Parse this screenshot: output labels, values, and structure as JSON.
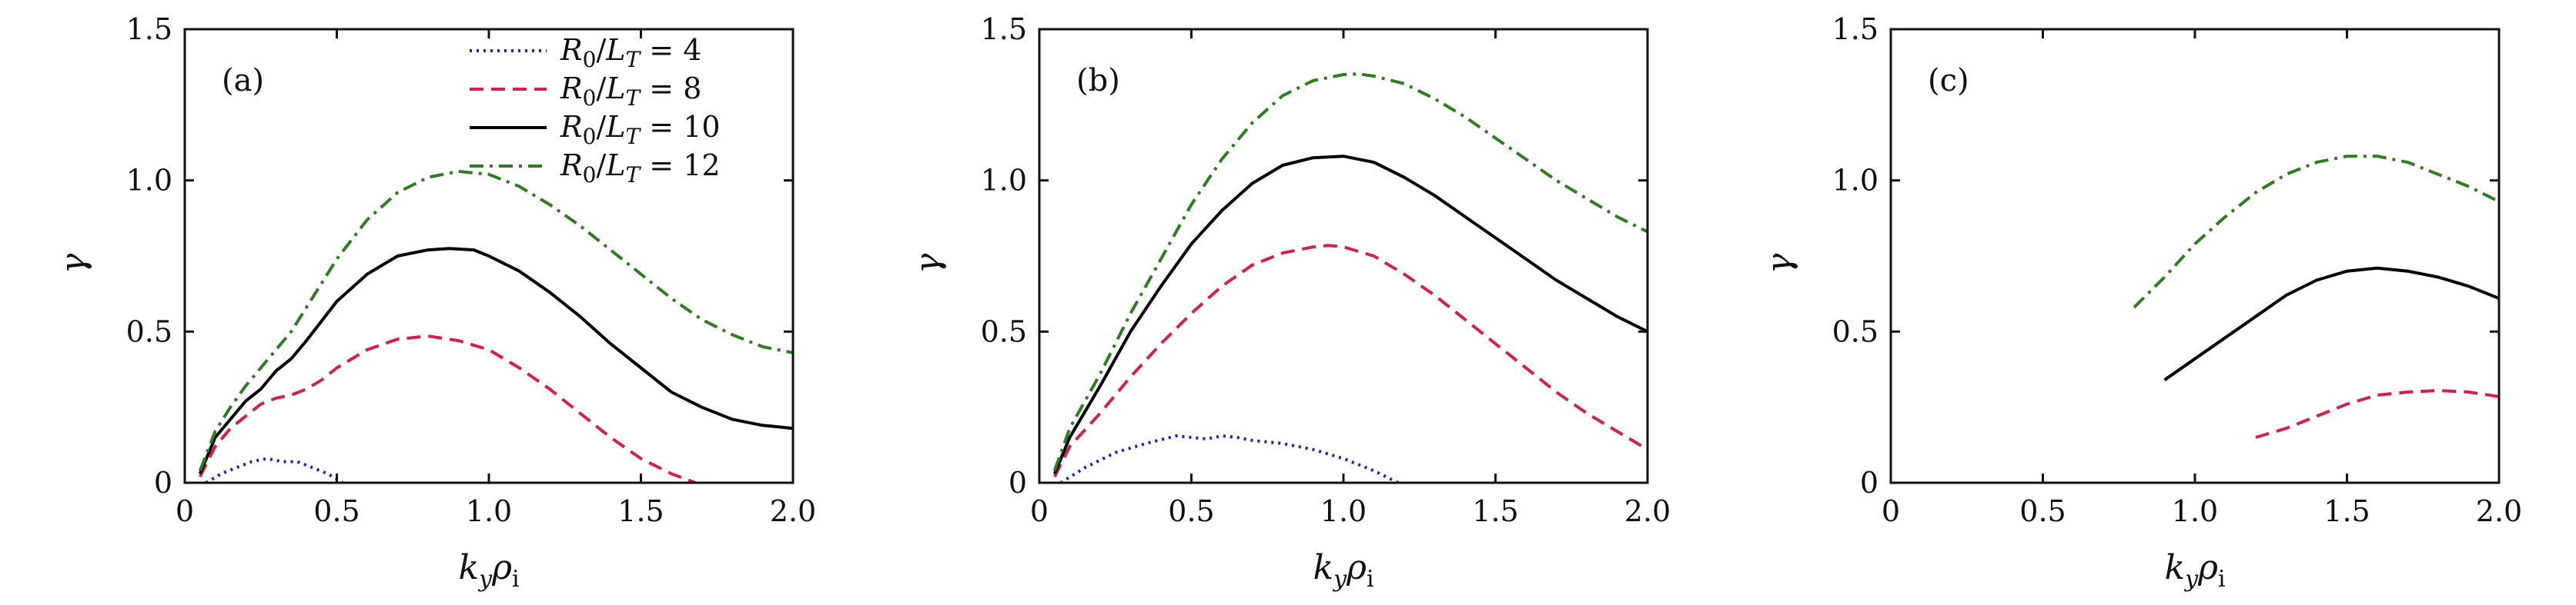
{
  "chart_data": [
    {
      "type": "line",
      "panel_label": "(a)",
      "xlabel": "k_y ρ_i",
      "ylabel": "γ",
      "xlim": [
        0,
        2.0
      ],
      "ylim": [
        0,
        1.5
      ],
      "xticks": [
        "0",
        "0.5",
        "1.0",
        "1.5",
        "2.0"
      ],
      "yticks": [
        "0",
        "0.5",
        "1.0",
        "1.5"
      ],
      "legend_position": "top-right",
      "series": [
        {
          "name": "R0/LT = 4",
          "color": "#1f1fbf",
          "style": "dotted",
          "x": [
            0.07,
            0.12,
            0.17,
            0.22,
            0.27,
            0.32,
            0.37,
            0.42,
            0.47,
            0.52
          ],
          "y": [
            0.0,
            0.03,
            0.05,
            0.07,
            0.08,
            0.07,
            0.07,
            0.05,
            0.03,
            0.0
          ]
        },
        {
          "name": "R0/LT = 8",
          "color": "#d4204a",
          "style": "dashed",
          "x": [
            0.05,
            0.1,
            0.15,
            0.2,
            0.25,
            0.3,
            0.35,
            0.4,
            0.45,
            0.5,
            0.6,
            0.7,
            0.8,
            0.9,
            1.0,
            1.1,
            1.2,
            1.3,
            1.4,
            1.5,
            1.6,
            1.68
          ],
          "y": [
            0.02,
            0.12,
            0.18,
            0.22,
            0.26,
            0.28,
            0.29,
            0.31,
            0.34,
            0.38,
            0.44,
            0.475,
            0.485,
            0.47,
            0.44,
            0.38,
            0.31,
            0.23,
            0.15,
            0.08,
            0.03,
            0.0
          ]
        },
        {
          "name": "R0/LT = 10",
          "color": "#000000",
          "style": "solid",
          "x": [
            0.05,
            0.1,
            0.15,
            0.2,
            0.25,
            0.3,
            0.35,
            0.4,
            0.5,
            0.6,
            0.7,
            0.8,
            0.87,
            0.95,
            1.0,
            1.1,
            1.2,
            1.3,
            1.4,
            1.5,
            1.6,
            1.7,
            1.8,
            1.9,
            2.0
          ],
          "y": [
            0.03,
            0.15,
            0.21,
            0.27,
            0.31,
            0.37,
            0.41,
            0.47,
            0.6,
            0.69,
            0.75,
            0.77,
            0.775,
            0.77,
            0.75,
            0.7,
            0.63,
            0.55,
            0.46,
            0.38,
            0.3,
            0.25,
            0.21,
            0.19,
            0.18
          ]
        },
        {
          "name": "R0/LT = 12",
          "color": "#2e7d1f",
          "style": "dashdot",
          "x": [
            0.05,
            0.1,
            0.15,
            0.2,
            0.25,
            0.3,
            0.35,
            0.4,
            0.5,
            0.6,
            0.7,
            0.8,
            0.9,
            1.0,
            1.1,
            1.2,
            1.3,
            1.4,
            1.5,
            1.6,
            1.7,
            1.8,
            1.9,
            2.0
          ],
          "y": [
            0.04,
            0.17,
            0.25,
            0.32,
            0.38,
            0.44,
            0.5,
            0.58,
            0.74,
            0.87,
            0.96,
            1.01,
            1.03,
            1.02,
            0.98,
            0.92,
            0.85,
            0.77,
            0.69,
            0.61,
            0.54,
            0.49,
            0.45,
            0.43
          ]
        }
      ]
    },
    {
      "type": "line",
      "panel_label": "(b)",
      "xlabel": "k_y ρ_i",
      "ylabel": "γ",
      "xlim": [
        0,
        2.0
      ],
      "ylim": [
        0,
        1.5
      ],
      "xticks": [
        "0",
        "0.5",
        "1.0",
        "1.5",
        "2.0"
      ],
      "yticks": [
        "0",
        "0.5",
        "1.0",
        "1.5"
      ],
      "series": [
        {
          "name": "R0/LT = 4",
          "color": "#1f1fbf",
          "style": "dotted",
          "x": [
            0.07,
            0.15,
            0.25,
            0.35,
            0.45,
            0.5,
            0.55,
            0.6,
            0.65,
            0.7,
            0.8,
            0.9,
            1.0,
            1.1,
            1.18
          ],
          "y": [
            0.0,
            0.05,
            0.1,
            0.13,
            0.155,
            0.15,
            0.145,
            0.155,
            0.15,
            0.14,
            0.13,
            0.11,
            0.08,
            0.04,
            0.0
          ]
        },
        {
          "name": "R0/LT = 8",
          "color": "#d4204a",
          "style": "dashed",
          "x": [
            0.05,
            0.1,
            0.2,
            0.3,
            0.4,
            0.5,
            0.6,
            0.7,
            0.8,
            0.9,
            0.95,
            1.0,
            1.1,
            1.2,
            1.3,
            1.4,
            1.5,
            1.6,
            1.7,
            1.8,
            1.9,
            2.0
          ],
          "y": [
            0.02,
            0.12,
            0.23,
            0.35,
            0.46,
            0.56,
            0.65,
            0.72,
            0.76,
            0.78,
            0.785,
            0.78,
            0.75,
            0.69,
            0.62,
            0.54,
            0.46,
            0.38,
            0.3,
            0.23,
            0.17,
            0.11
          ]
        },
        {
          "name": "R0/LT = 10",
          "color": "#000000",
          "style": "solid",
          "x": [
            0.05,
            0.1,
            0.2,
            0.3,
            0.4,
            0.5,
            0.6,
            0.7,
            0.8,
            0.9,
            1.0,
            1.1,
            1.2,
            1.3,
            1.4,
            1.5,
            1.6,
            1.7,
            1.8,
            1.9,
            2.0
          ],
          "y": [
            0.03,
            0.15,
            0.32,
            0.5,
            0.65,
            0.79,
            0.9,
            0.99,
            1.05,
            1.075,
            1.08,
            1.06,
            1.01,
            0.95,
            0.88,
            0.81,
            0.74,
            0.67,
            0.61,
            0.55,
            0.5
          ]
        },
        {
          "name": "R0/LT = 12",
          "color": "#2e7d1f",
          "style": "dashdot",
          "x": [
            0.05,
            0.1,
            0.2,
            0.3,
            0.4,
            0.5,
            0.6,
            0.7,
            0.8,
            0.9,
            1.0,
            1.05,
            1.1,
            1.2,
            1.3,
            1.4,
            1.5,
            1.6,
            1.7,
            1.8,
            1.9,
            2.0
          ],
          "y": [
            0.04,
            0.18,
            0.36,
            0.56,
            0.74,
            0.92,
            1.07,
            1.19,
            1.28,
            1.33,
            1.35,
            1.352,
            1.345,
            1.32,
            1.27,
            1.21,
            1.14,
            1.07,
            1.0,
            0.94,
            0.88,
            0.83
          ]
        }
      ]
    },
    {
      "type": "line",
      "panel_label": "(c)",
      "xlabel": "k_y ρ_i",
      "ylabel": "γ",
      "xlim": [
        0,
        2.0
      ],
      "ylim": [
        0,
        1.5
      ],
      "xticks": [
        "0",
        "0.5",
        "1.0",
        "1.5",
        "2.0"
      ],
      "yticks": [
        "0",
        "0.5",
        "1.0",
        "1.5"
      ],
      "series": [
        {
          "name": "R0/LT = 8",
          "color": "#d4204a",
          "style": "dashed",
          "x": [
            1.2,
            1.3,
            1.4,
            1.5,
            1.6,
            1.7,
            1.8,
            1.9,
            2.0
          ],
          "y": [
            0.15,
            0.18,
            0.22,
            0.26,
            0.29,
            0.3,
            0.305,
            0.3,
            0.285
          ]
        },
        {
          "name": "R0/LT = 10",
          "color": "#000000",
          "style": "solid",
          "x": [
            0.9,
            1.0,
            1.1,
            1.2,
            1.3,
            1.4,
            1.5,
            1.6,
            1.7,
            1.8,
            1.9,
            2.0
          ],
          "y": [
            0.34,
            0.41,
            0.48,
            0.55,
            0.62,
            0.67,
            0.7,
            0.71,
            0.7,
            0.68,
            0.65,
            0.61
          ]
        },
        {
          "name": "R0/LT = 12",
          "color": "#2e7d1f",
          "style": "dashdot",
          "x": [
            0.8,
            0.9,
            1.0,
            1.1,
            1.2,
            1.3,
            1.4,
            1.5,
            1.6,
            1.7,
            1.8,
            1.9,
            2.0
          ],
          "y": [
            0.58,
            0.68,
            0.79,
            0.88,
            0.96,
            1.02,
            1.06,
            1.08,
            1.08,
            1.06,
            1.02,
            0.98,
            0.93
          ]
        }
      ]
    }
  ],
  "legend": {
    "entries": [
      {
        "var": "R",
        "sub": "0",
        "sep": "/",
        "var2": "L",
        "sub2": "T",
        "eq": " = ",
        "val": "4"
      },
      {
        "var": "R",
        "sub": "0",
        "sep": "/",
        "var2": "L",
        "sub2": "T",
        "eq": " = ",
        "val": "8"
      },
      {
        "var": "R",
        "sub": "0",
        "sep": "/",
        "var2": "L",
        "sub2": "T",
        "eq": " = ",
        "val": "10"
      },
      {
        "var": "R",
        "sub": "0",
        "sep": "/",
        "var2": "L",
        "sub2": "T",
        "eq": " = ",
        "val": "12"
      }
    ]
  },
  "axis_label": {
    "x_main": "k",
    "x_main_sub": "y",
    "x_second": "ρ",
    "x_second_sub": "i",
    "y_main": "γ"
  }
}
